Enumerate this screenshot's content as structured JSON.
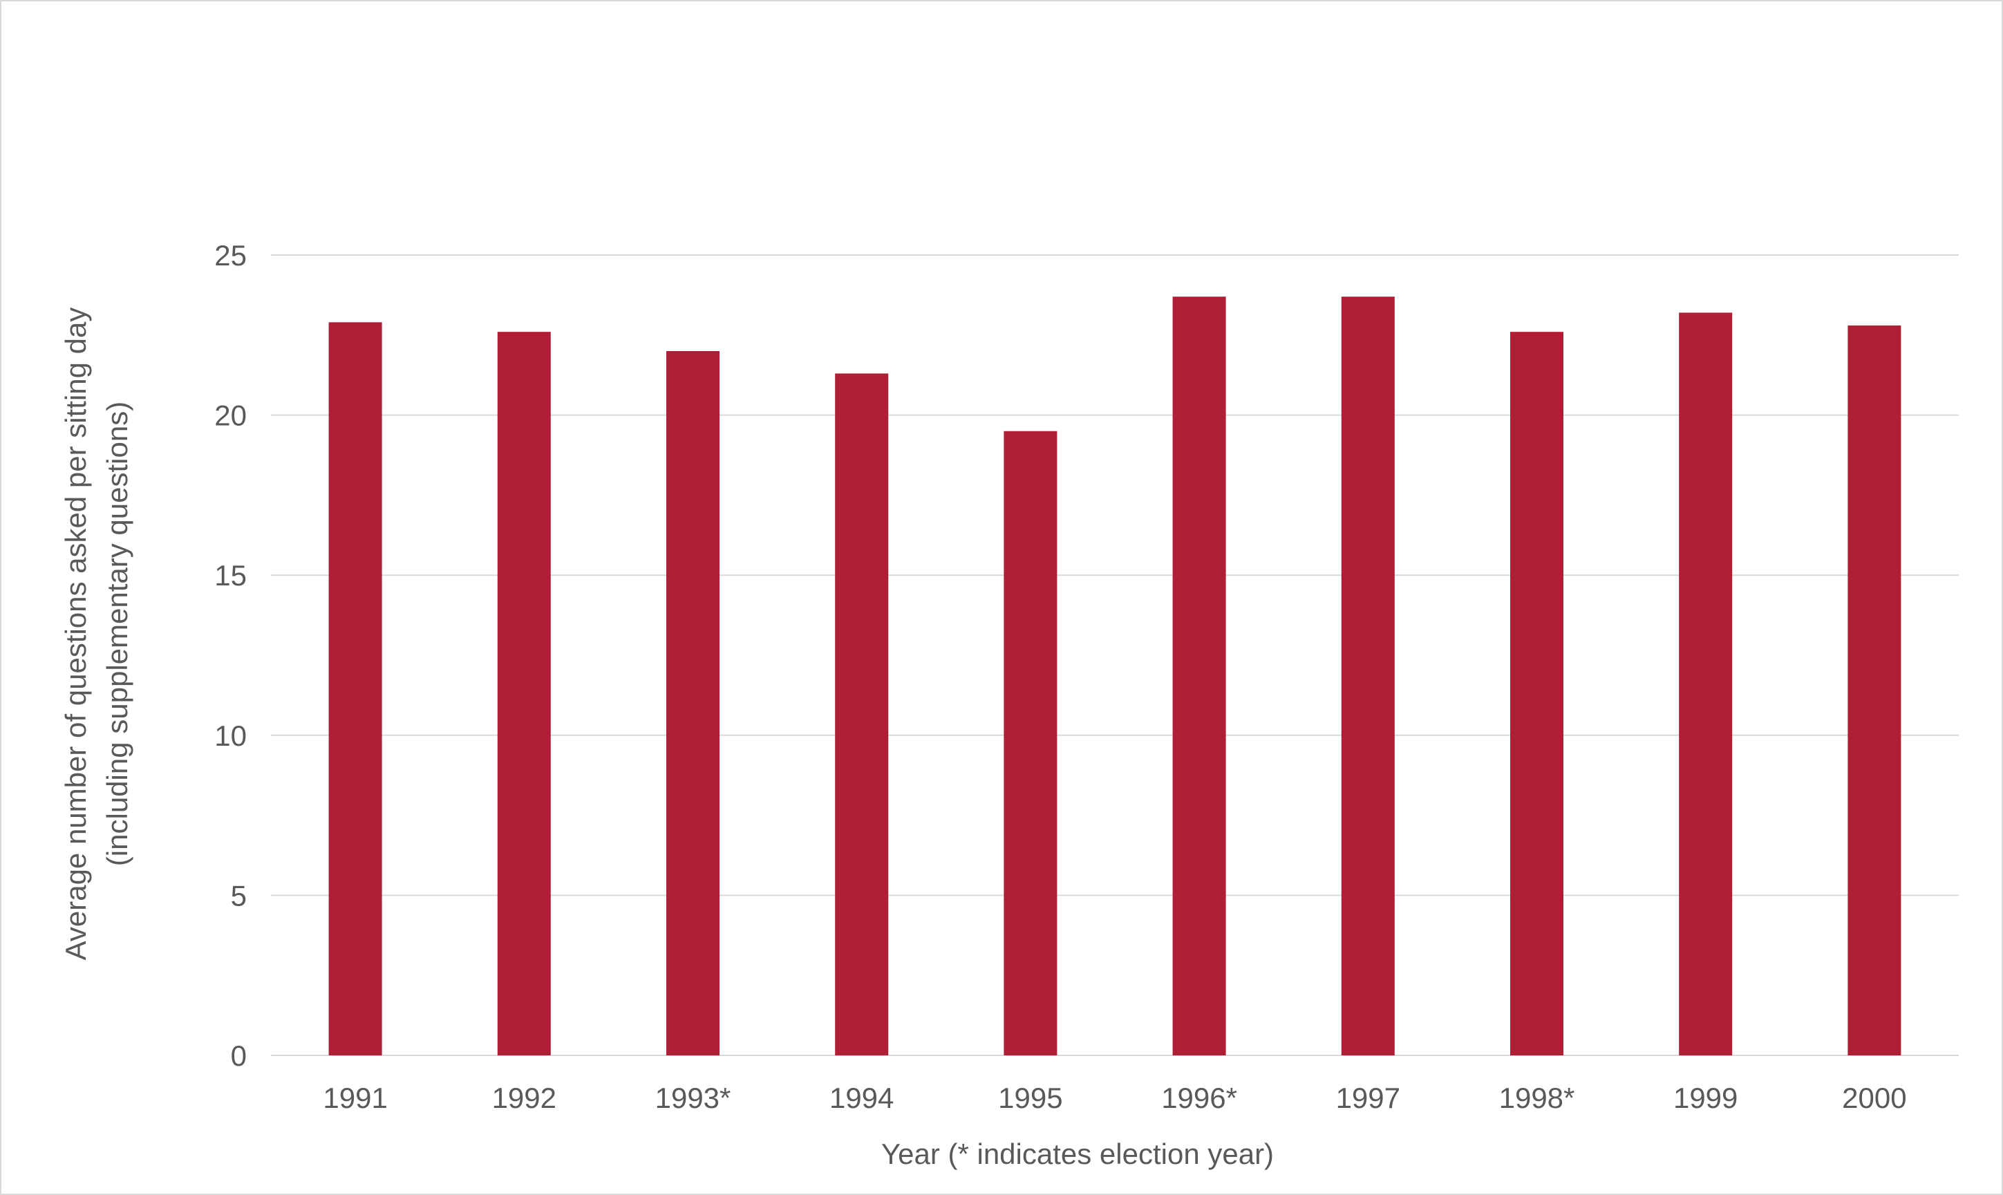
{
  "chart_data": {
    "type": "bar",
    "title": "",
    "categories": [
      "1991",
      "1992",
      "1993*",
      "1994",
      "1995",
      "1996*",
      "1997",
      "1998*",
      "1999",
      "2000"
    ],
    "values": [
      22.9,
      22.6,
      22.0,
      21.3,
      19.5,
      23.7,
      23.7,
      22.6,
      23.2,
      22.8
    ],
    "xlabel": "Year (* indicates election year)",
    "ylabel_lines": [
      "Average number of questions asked per sitting day",
      "(including supplementary questions)"
    ],
    "ylim": [
      0,
      25
    ],
    "yticks": [
      0,
      5,
      10,
      15,
      20,
      25
    ],
    "grid": true,
    "legend": "none",
    "colors": {
      "bar": "#ae1e35",
      "grid": "#d9d9d9",
      "text": "#595959",
      "frame": "#d9d9d9"
    }
  }
}
